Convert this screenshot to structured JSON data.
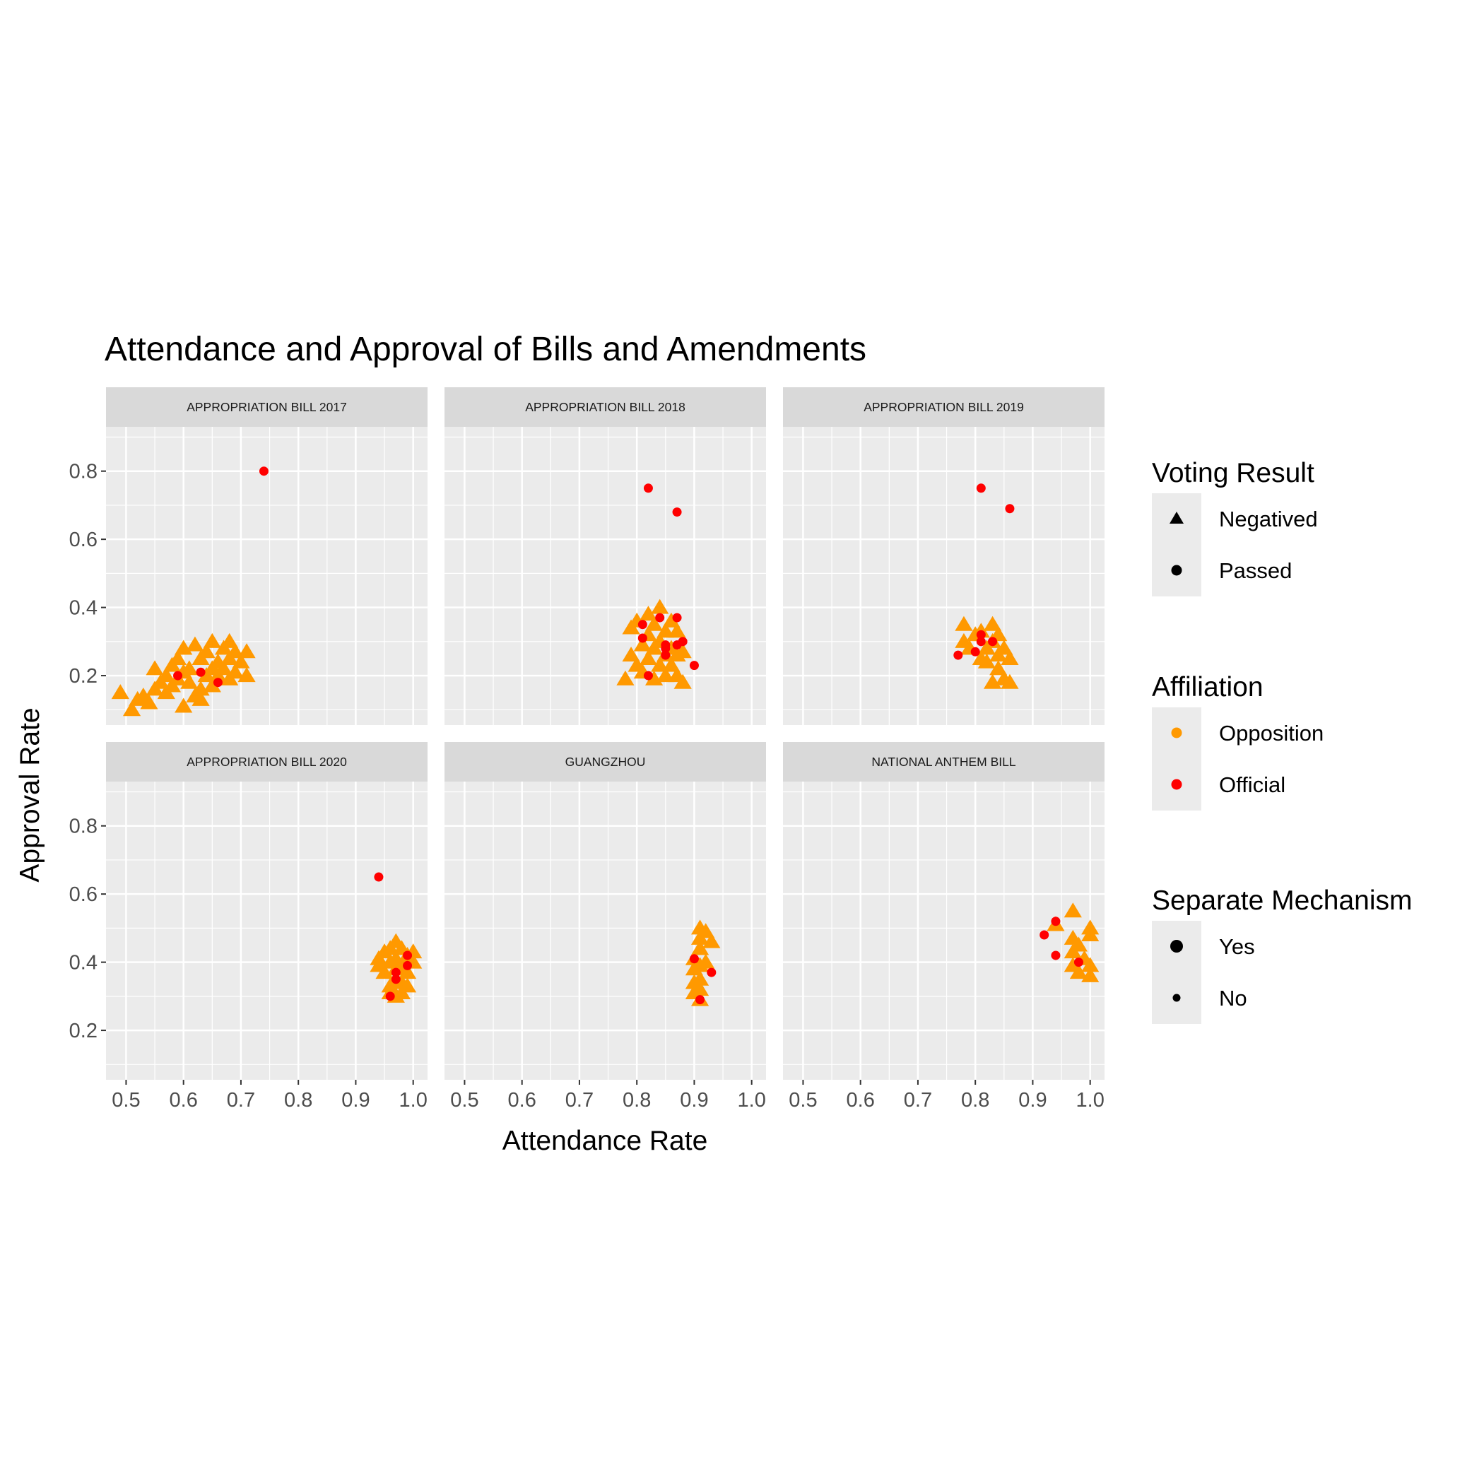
{
  "chart_data": {
    "type": "scatter",
    "title": "Attendance and Approval of Bills and Amendments",
    "xlabel": "Attendance Rate",
    "ylabel": "Approval Rate",
    "xlim": [
      0.465,
      1.025
    ],
    "ylim": [
      0.055,
      0.93
    ],
    "x_ticks": [
      "0.5",
      "0.6",
      "0.7",
      "0.8",
      "0.9",
      "1.0"
    ],
    "y_ticks": [
      "0.2",
      "0.4",
      "0.6",
      "0.8"
    ],
    "grid": true,
    "colors": {
      "Opposition": "#FF9900",
      "Official": "#FF0000"
    },
    "legends": [
      {
        "title": "Voting Result",
        "entries": [
          {
            "label": "Negatived",
            "shape": "triangle"
          },
          {
            "label": "Passed",
            "shape": "circle"
          }
        ]
      },
      {
        "title": "Affiliation",
        "entries": [
          {
            "label": "Opposition",
            "color": "#FF9900"
          },
          {
            "label": "Official",
            "color": "#FF0000"
          }
        ]
      },
      {
        "title": "Separate Mechanism",
        "entries": [
          {
            "label": "Yes",
            "size": "large"
          },
          {
            "label": "No",
            "size": "small"
          }
        ]
      }
    ],
    "legend_position": "right",
    "panels": [
      {
        "name": "APPROPRIATION BILL 2017",
        "opposition_negatived": [
          [
            0.49,
            0.15
          ],
          [
            0.51,
            0.1
          ],
          [
            0.52,
            0.13
          ],
          [
            0.53,
            0.14
          ],
          [
            0.54,
            0.12
          ],
          [
            0.55,
            0.16
          ],
          [
            0.55,
            0.22
          ],
          [
            0.56,
            0.18
          ],
          [
            0.57,
            0.15
          ],
          [
            0.57,
            0.2
          ],
          [
            0.58,
            0.17
          ],
          [
            0.58,
            0.23
          ],
          [
            0.59,
            0.19
          ],
          [
            0.59,
            0.25
          ],
          [
            0.6,
            0.28
          ],
          [
            0.6,
            0.21
          ],
          [
            0.6,
            0.11
          ],
          [
            0.61,
            0.18
          ],
          [
            0.61,
            0.22
          ],
          [
            0.62,
            0.14
          ],
          [
            0.62,
            0.29
          ],
          [
            0.63,
            0.16
          ],
          [
            0.63,
            0.25
          ],
          [
            0.63,
            0.13
          ],
          [
            0.64,
            0.2
          ],
          [
            0.64,
            0.27
          ],
          [
            0.65,
            0.22
          ],
          [
            0.65,
            0.3
          ],
          [
            0.65,
            0.17
          ],
          [
            0.66,
            0.24
          ],
          [
            0.66,
            0.2
          ],
          [
            0.67,
            0.28
          ],
          [
            0.67,
            0.22
          ],
          [
            0.68,
            0.3
          ],
          [
            0.68,
            0.25
          ],
          [
            0.68,
            0.19
          ],
          [
            0.69,
            0.21
          ],
          [
            0.69,
            0.27
          ],
          [
            0.7,
            0.24
          ],
          [
            0.71,
            0.2
          ],
          [
            0.71,
            0.27
          ]
        ],
        "official_passed": [
          [
            0.59,
            0.2
          ],
          [
            0.63,
            0.21
          ],
          [
            0.66,
            0.18
          ],
          [
            0.74,
            0.8
          ]
        ]
      },
      {
        "name": "APPROPRIATION BILL 2018",
        "opposition_negatived": [
          [
            0.78,
            0.19
          ],
          [
            0.79,
            0.34
          ],
          [
            0.79,
            0.26
          ],
          [
            0.8,
            0.36
          ],
          [
            0.8,
            0.23
          ],
          [
            0.81,
            0.29
          ],
          [
            0.81,
            0.21
          ],
          [
            0.82,
            0.38
          ],
          [
            0.82,
            0.25
          ],
          [
            0.82,
            0.32
          ],
          [
            0.83,
            0.28
          ],
          [
            0.83,
            0.19
          ],
          [
            0.83,
            0.35
          ],
          [
            0.84,
            0.4
          ],
          [
            0.84,
            0.23
          ],
          [
            0.84,
            0.3
          ],
          [
            0.85,
            0.26
          ],
          [
            0.85,
            0.33
          ],
          [
            0.85,
            0.2
          ],
          [
            0.86,
            0.36
          ],
          [
            0.86,
            0.28
          ],
          [
            0.86,
            0.23
          ],
          [
            0.87,
            0.33
          ],
          [
            0.87,
            0.2
          ],
          [
            0.87,
            0.26
          ],
          [
            0.88,
            0.18
          ],
          [
            0.88,
            0.27
          ]
        ],
        "official_passed": [
          [
            0.81,
            0.35
          ],
          [
            0.81,
            0.31
          ],
          [
            0.82,
            0.75
          ],
          [
            0.82,
            0.2
          ],
          [
            0.84,
            0.37
          ],
          [
            0.85,
            0.29
          ],
          [
            0.85,
            0.28
          ],
          [
            0.85,
            0.26
          ],
          [
            0.87,
            0.37
          ],
          [
            0.87,
            0.68
          ],
          [
            0.87,
            0.29
          ],
          [
            0.88,
            0.3
          ],
          [
            0.9,
            0.23
          ]
        ]
      },
      {
        "name": "APPROPRIATION BILL 2019",
        "opposition_negatived": [
          [
            0.78,
            0.35
          ],
          [
            0.78,
            0.3
          ],
          [
            0.79,
            0.28
          ],
          [
            0.8,
            0.32
          ],
          [
            0.81,
            0.25
          ],
          [
            0.81,
            0.33
          ],
          [
            0.82,
            0.28
          ],
          [
            0.82,
            0.24
          ],
          [
            0.83,
            0.35
          ],
          [
            0.83,
            0.3
          ],
          [
            0.83,
            0.18
          ],
          [
            0.84,
            0.26
          ],
          [
            0.84,
            0.32
          ],
          [
            0.84,
            0.22
          ],
          [
            0.85,
            0.28
          ],
          [
            0.85,
            0.19
          ],
          [
            0.86,
            0.25
          ],
          [
            0.86,
            0.18
          ]
        ],
        "official_passed": [
          [
            0.77,
            0.26
          ],
          [
            0.8,
            0.27
          ],
          [
            0.81,
            0.32
          ],
          [
            0.81,
            0.3
          ],
          [
            0.81,
            0.75
          ],
          [
            0.83,
            0.3
          ],
          [
            0.86,
            0.69
          ]
        ]
      },
      {
        "name": "APPROPRIATION BILL 2020",
        "opposition_negatived": [
          [
            0.94,
            0.41
          ],
          [
            0.94,
            0.39
          ],
          [
            0.95,
            0.43
          ],
          [
            0.95,
            0.37
          ],
          [
            0.96,
            0.44
          ],
          [
            0.96,
            0.4
          ],
          [
            0.96,
            0.33
          ],
          [
            0.96,
            0.31
          ],
          [
            0.97,
            0.46
          ],
          [
            0.97,
            0.41
          ],
          [
            0.97,
            0.38
          ],
          [
            0.97,
            0.35
          ],
          [
            0.97,
            0.3
          ],
          [
            0.98,
            0.44
          ],
          [
            0.98,
            0.39
          ],
          [
            0.98,
            0.34
          ],
          [
            0.98,
            0.31
          ],
          [
            0.99,
            0.42
          ],
          [
            0.99,
            0.37
          ],
          [
            0.99,
            0.33
          ],
          [
            1.0,
            0.43
          ],
          [
            1.0,
            0.4
          ]
        ],
        "official_passed": [
          [
            0.94,
            0.65
          ],
          [
            0.96,
            0.3
          ],
          [
            0.97,
            0.37
          ],
          [
            0.97,
            0.35
          ],
          [
            0.99,
            0.42
          ],
          [
            0.99,
            0.39
          ]
        ]
      },
      {
        "name": "GUANGZHOU",
        "opposition_negatived": [
          [
            0.9,
            0.31
          ],
          [
            0.9,
            0.34
          ],
          [
            0.9,
            0.38
          ],
          [
            0.9,
            0.41
          ],
          [
            0.91,
            0.5
          ],
          [
            0.91,
            0.47
          ],
          [
            0.91,
            0.44
          ],
          [
            0.91,
            0.39
          ],
          [
            0.91,
            0.35
          ],
          [
            0.91,
            0.32
          ],
          [
            0.91,
            0.29
          ],
          [
            0.92,
            0.49
          ],
          [
            0.92,
            0.4
          ],
          [
            0.93,
            0.46
          ]
        ],
        "official_passed": [
          [
            0.9,
            0.41
          ],
          [
            0.91,
            0.29
          ],
          [
            0.93,
            0.37
          ]
        ]
      },
      {
        "name": "NATIONAL ANTHEM BILL",
        "opposition_negatived": [
          [
            0.94,
            0.51
          ],
          [
            0.97,
            0.55
          ],
          [
            0.97,
            0.47
          ],
          [
            0.97,
            0.43
          ],
          [
            0.97,
            0.39
          ],
          [
            0.98,
            0.45
          ],
          [
            0.98,
            0.37
          ],
          [
            0.99,
            0.41
          ],
          [
            1.0,
            0.5
          ],
          [
            1.0,
            0.48
          ],
          [
            1.0,
            0.39
          ],
          [
            1.0,
            0.36
          ]
        ],
        "official_passed": [
          [
            0.92,
            0.48
          ],
          [
            0.94,
            0.52
          ],
          [
            0.94,
            0.42
          ],
          [
            0.98,
            0.4
          ]
        ]
      }
    ]
  }
}
